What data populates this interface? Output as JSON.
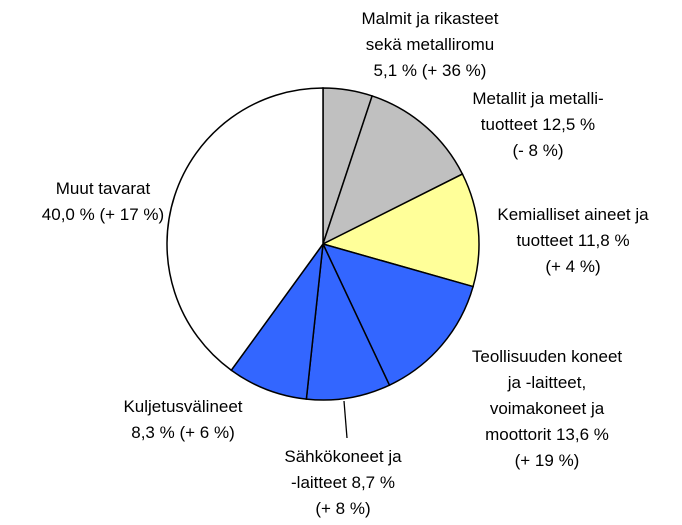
{
  "chart_data": {
    "type": "pie",
    "categories": [
      [
        "Malmit ja rikasteet",
        "sekä metalliromu"
      ],
      [
        "Metallit ja metalli-",
        "tuotteet"
      ],
      [
        "Kemialliset aineet ja",
        "tuotteet"
      ],
      [
        "Teollisuuden koneet",
        "ja -laitteet,",
        "voimakoneet ja",
        "moottorit"
      ],
      [
        "Sähkökoneet ja",
        "-laitteet"
      ],
      [
        "Kuljetusvälineet"
      ],
      [
        "Muut tavarat"
      ]
    ],
    "values": [
      5.1,
      12.5,
      11.8,
      13.6,
      8.7,
      8.3,
      40.0
    ],
    "value_labels": [
      "5,1 %",
      "12,5 %",
      "11,8 %",
      "13,6 %",
      "8,7 %",
      "8,3 %",
      "40,0 %"
    ],
    "changes": [
      "(+ 36 %)",
      "(- 8 %)",
      "(+ 4 %)",
      "(+ 19 %)",
      "(+ 8 %)",
      "(+ 6 %)",
      "(+ 17 %)"
    ],
    "colors": [
      "#c0c0c0",
      "#c0c0c0",
      "#ffff99",
      "#3366ff",
      "#3366ff",
      "#3366ff",
      "#ffffff"
    ]
  }
}
